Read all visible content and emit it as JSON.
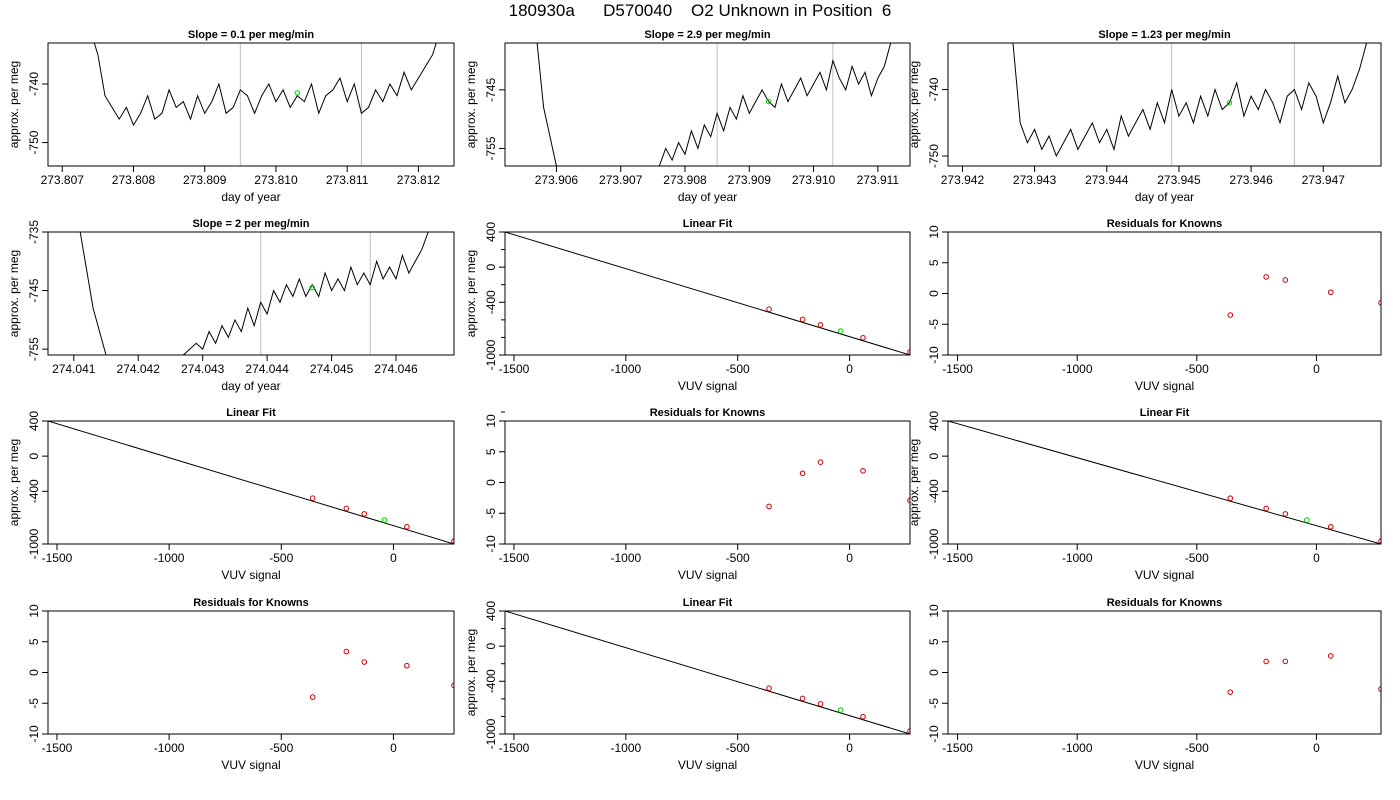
{
  "figure": {
    "title": "180930a      D570040    O2 Unknown in Position  6"
  },
  "colors": {
    "line": "#000000",
    "vline": "#bebebe",
    "unknown": "#00cc00",
    "known": "#cc0000",
    "box": "#000000"
  },
  "chart_data": [
    {
      "type": "line",
      "title": "Slope =  0.1  per meg/min",
      "xlabel": "day of year",
      "ylabel": "approx. per meg",
      "xlim": [
        273.8068,
        273.8125
      ],
      "ylim": [
        -754.0,
        -733.0
      ],
      "xticks": [
        "273.807",
        "273.808",
        "273.809",
        "273.810",
        "273.811",
        "273.812"
      ],
      "yticks": [
        "-740",
        "-750"
      ],
      "vlines": [
        273.8095,
        273.8112
      ],
      "marker": {
        "x": 273.8103,
        "y": -741.5
      },
      "x": [
        273.8074,
        273.8075,
        273.8076,
        273.8077,
        273.8078,
        273.8079,
        273.808,
        273.8081,
        273.8082,
        273.8083,
        273.8084,
        273.8085,
        273.8086,
        273.8087,
        273.8088,
        273.8089,
        273.809,
        273.8091,
        273.8092,
        273.8093,
        273.8094,
        273.8095,
        273.8096,
        273.8097,
        273.8098,
        273.8099,
        273.81,
        273.8101,
        273.8102,
        273.8103,
        273.8104,
        273.8105,
        273.8106,
        273.8107,
        273.8108,
        273.8109,
        273.811,
        273.8111,
        273.8112,
        273.8113,
        273.8114,
        273.8115,
        273.8116,
        273.8117,
        273.8118,
        273.8119,
        273.812,
        273.8121,
        273.8122,
        273.8123
      ],
      "y": [
        -731,
        -735,
        -742,
        -744,
        -746,
        -744,
        -747,
        -745,
        -742,
        -746,
        -745,
        -741,
        -744,
        -743,
        -746,
        -742,
        -745,
        -743,
        -740,
        -745,
        -744,
        -741,
        -742,
        -745,
        -742,
        -740,
        -743,
        -741,
        -744,
        -742,
        -743,
        -740,
        -745,
        -742,
        -741,
        -739,
        -743,
        -740,
        -745,
        -744,
        -741,
        -743,
        -740,
        -742,
        -738,
        -741,
        -739,
        -737,
        -735,
        -731
      ]
    },
    {
      "type": "line",
      "title": "Slope =  2.9  per meg/min",
      "xlabel": "day of year",
      "ylabel": "approx. per meg",
      "xlim": [
        273.9052,
        273.9115
      ],
      "ylim": [
        -758.0,
        -737.0
      ],
      "xticks": [
        "273.906",
        "273.907",
        "273.908",
        "273.909",
        "273.910",
        "273.911"
      ],
      "yticks": [
        "-745",
        "-755"
      ],
      "vlines": [
        273.9085,
        273.9103
      ],
      "marker": {
        "x": 273.9093,
        "y": -747.0
      },
      "x": [
        273.9057,
        273.9058,
        273.906,
        273.907,
        273.9076,
        273.9077,
        273.9078,
        273.9079,
        273.908,
        273.9081,
        273.9082,
        273.9083,
        273.9084,
        273.9085,
        273.9086,
        273.9087,
        273.9088,
        273.9089,
        273.909,
        273.9091,
        273.9092,
        273.9093,
        273.9094,
        273.9095,
        273.9096,
        273.9097,
        273.9098,
        273.9099,
        273.91,
        273.9101,
        273.9102,
        273.9103,
        273.9104,
        273.9105,
        273.9106,
        273.9107,
        273.9108,
        273.9109,
        273.911,
        273.9111,
        273.9112
      ],
      "y": [
        -737,
        -748,
        -758,
        -758,
        -758,
        -755,
        -757,
        -754,
        -756,
        -752,
        -755,
        -751,
        -753,
        -749,
        -752,
        -748,
        -750,
        -746,
        -749,
        -747,
        -745,
        -747,
        -748,
        -744,
        -747,
        -745,
        -743,
        -746,
        -744,
        -742,
        -745,
        -740,
        -743,
        -745,
        -741,
        -744,
        -742,
        -746,
        -743,
        -741,
        -737
      ]
    },
    {
      "type": "line",
      "title": "Slope =  1.23  per meg/min",
      "xlabel": "day of year",
      "ylabel": "approx. per meg",
      "xlim": [
        273.9418,
        273.9478
      ],
      "ylim": [
        -751.5,
        -733.0
      ],
      "xticks": [
        "273.942",
        "273.943",
        "273.944",
        "273.945",
        "273.946",
        "273.947"
      ],
      "yticks": [
        "-740",
        "-750"
      ],
      "vlines": [
        273.9449,
        273.9466
      ],
      "marker": {
        "x": 273.9457,
        "y": -742.0
      },
      "x": [
        273.9427,
        273.9428,
        273.9429,
        273.943,
        273.9431,
        273.9432,
        273.9433,
        273.9434,
        273.9435,
        273.9436,
        273.9437,
        273.9438,
        273.9439,
        273.944,
        273.9441,
        273.9442,
        273.9443,
        273.9444,
        273.9445,
        273.9446,
        273.9447,
        273.9448,
        273.9449,
        273.945,
        273.9451,
        273.9452,
        273.9453,
        273.9454,
        273.9455,
        273.9456,
        273.9457,
        273.9458,
        273.9459,
        273.946,
        273.9461,
        273.9462,
        273.9463,
        273.9464,
        273.9465,
        273.9466,
        273.9467,
        273.9468,
        273.9469,
        273.947,
        273.9471,
        273.9472,
        273.9473,
        273.9474,
        273.9475,
        273.9476
      ],
      "y": [
        -733,
        -745,
        -748,
        -746,
        -749,
        -747,
        -750,
        -748,
        -746,
        -749,
        -747,
        -745,
        -748,
        -746,
        -749,
        -744,
        -747,
        -745,
        -743,
        -746,
        -742,
        -745,
        -740,
        -744,
        -742,
        -745,
        -741,
        -744,
        -740,
        -743,
        -742,
        -739,
        -744,
        -741,
        -743,
        -740,
        -742,
        -745,
        -741,
        -740,
        -743,
        -739,
        -741,
        -745,
        -742,
        -738,
        -742,
        -740,
        -737,
        -733
      ]
    },
    {
      "type": "line",
      "title": "Slope =  2  per meg/min",
      "xlabel": "day of year",
      "ylabel": "approx. per meg",
      "xlim": [
        274.0406,
        274.0469
      ],
      "ylim": [
        -756.0,
        -735.0
      ],
      "xticks": [
        "274.041",
        "274.042",
        "274.043",
        "274.044",
        "274.045",
        "274.046"
      ],
      "yticks": [
        "-735",
        "-745",
        "-755"
      ],
      "vlines": [
        274.0439,
        274.0456
      ],
      "marker": {
        "x": 274.0447,
        "y": -744.5
      },
      "x": [
        274.0411,
        274.0413,
        274.0415,
        274.0425,
        274.0427,
        274.0429,
        274.043,
        274.0431,
        274.0432,
        274.0433,
        274.0434,
        274.0435,
        274.0436,
        274.0437,
        274.0438,
        274.0439,
        274.044,
        274.0441,
        274.0442,
        274.0443,
        274.0444,
        274.0445,
        274.0446,
        274.0447,
        274.0448,
        274.0449,
        274.045,
        274.0451,
        274.0452,
        274.0453,
        274.0454,
        274.0455,
        274.0456,
        274.0457,
        274.0458,
        274.0459,
        274.046,
        274.0461,
        274.0462,
        274.0463,
        274.0464,
        274.0465
      ],
      "y": [
        -735,
        -748,
        -756,
        -756,
        -756,
        -754,
        -755,
        -752,
        -754,
        -751,
        -753,
        -750,
        -752,
        -748,
        -751,
        -747,
        -749,
        -745,
        -747,
        -744,
        -746,
        -743,
        -746,
        -744,
        -746,
        -742,
        -745,
        -743,
        -745,
        -741,
        -744,
        -742,
        -744,
        -740,
        -743,
        -741,
        -743,
        -739,
        -742,
        -740,
        -738,
        -735
      ]
    },
    {
      "type": "scatter",
      "title": "Linear Fit",
      "xlabel": "VUV signal",
      "ylabel": "approx. per meg",
      "xlim": [
        -1540,
        270
      ],
      "ylim": [
        -1000,
        400
      ],
      "xticks": [
        "-1500",
        "-1000",
        "-500",
        "0"
      ],
      "yticks": [
        "400",
        "0",
        "-400",
        "-1000"
      ],
      "fit_line": [
        [
          -1540,
          400
        ],
        [
          270,
          -1000
        ]
      ],
      "known": {
        "x": [
          -360,
          -210,
          -130,
          60,
          270
        ],
        "y": [
          -479,
          -595,
          -657,
          -804,
          -966
        ]
      },
      "unknown": {
        "x": [
          -40
        ],
        "y": [
          -727
        ]
      }
    },
    {
      "type": "scatter",
      "title": "Residuals for Knowns",
      "xlabel": "VUV signal",
      "ylabel": "",
      "xlim": [
        -1540,
        270
      ],
      "ylim": [
        -10,
        10
      ],
      "xticks": [
        "-1500",
        "-1000",
        "-500",
        "0"
      ],
      "yticks": [
        "10",
        "5",
        "0",
        "-5",
        "-10"
      ],
      "known": {
        "x": [
          -360,
          -210,
          -130,
          60,
          270
        ],
        "y": [
          -3.5,
          2.7,
          2.2,
          0.2,
          -1.5
        ]
      }
    },
    {
      "type": "scatter",
      "title": "Linear Fit",
      "xlabel": "VUV signal",
      "ylabel": "approx. per meg",
      "xlim": [
        -1540,
        270
      ],
      "ylim": [
        -1000,
        400
      ],
      "xticks": [
        "-1500",
        "-1000",
        "-500",
        "0"
      ],
      "yticks": [
        "400",
        "0",
        "-400",
        "-1000"
      ],
      "fit_line": [
        [
          -1540,
          400
        ],
        [
          270,
          -1000
        ]
      ],
      "known": {
        "x": [
          -360,
          -210,
          -130,
          60,
          270
        ],
        "y": [
          -479,
          -595,
          -657,
          -804,
          -966
        ]
      },
      "unknown": {
        "x": [
          -40
        ],
        "y": [
          -727
        ]
      }
    },
    {
      "type": "scatter",
      "title": "Residuals for Knowns",
      "xlabel": "VUV signal",
      "ylabel": "",
      "xlim": [
        -1540,
        270
      ],
      "ylim": [
        -10,
        10
      ],
      "xticks": [
        "-1500",
        "-1000",
        "-500",
        "0"
      ],
      "yticks": [
        "10",
        "5",
        "0",
        "-5",
        "-10"
      ],
      "known": {
        "x": [
          -360,
          -210,
          -130,
          60,
          270
        ],
        "y": [
          -3.9,
          1.5,
          3.3,
          1.9,
          -2.9
        ]
      }
    },
    {
      "type": "scatter",
      "title": "Linear Fit",
      "xlabel": "VUV signal",
      "ylabel": "approx. per meg",
      "xlim": [
        -1540,
        270
      ],
      "ylim": [
        -1000,
        400
      ],
      "xticks": [
        "-1500",
        "-1000",
        "-500",
        "0"
      ],
      "yticks": [
        "400",
        "0",
        "-400",
        "-1000"
      ],
      "fit_line": [
        [
          -1540,
          400
        ],
        [
          270,
          -1000
        ]
      ],
      "known": {
        "x": [
          -360,
          -210,
          -130,
          60,
          270
        ],
        "y": [
          -479,
          -595,
          -657,
          -804,
          -966
        ]
      },
      "unknown": {
        "x": [
          -40
        ],
        "y": [
          -727
        ]
      }
    },
    {
      "type": "scatter",
      "title": "Residuals for Knowns",
      "xlabel": "VUV signal",
      "ylabel": "",
      "xlim": [
        -1540,
        270
      ],
      "ylim": [
        -10,
        10
      ],
      "xticks": [
        "-1500",
        "-1000",
        "-500",
        "0"
      ],
      "yticks": [
        "10",
        "5",
        "0",
        "-5",
        "-10"
      ],
      "known": {
        "x": [
          -360,
          -210,
          -130,
          60,
          270
        ],
        "y": [
          -4.0,
          3.4,
          1.7,
          1.1,
          -2.1
        ]
      }
    },
    {
      "type": "scatter",
      "title": "Linear Fit",
      "xlabel": "VUV signal",
      "ylabel": "approx. per meg",
      "xlim": [
        -1540,
        270
      ],
      "ylim": [
        -1000,
        400
      ],
      "xticks": [
        "-1500",
        "-1000",
        "-500",
        "0"
      ],
      "yticks": [
        "400",
        "0",
        "-400",
        "-1000"
      ],
      "fit_line": [
        [
          -1540,
          400
        ],
        [
          270,
          -1000
        ]
      ],
      "known": {
        "x": [
          -360,
          -210,
          -130,
          60,
          270
        ],
        "y": [
          -479,
          -595,
          -657,
          -804,
          -966
        ]
      },
      "unknown": {
        "x": [
          -40
        ],
        "y": [
          -727
        ]
      }
    },
    {
      "type": "scatter",
      "title": "Residuals for Knowns",
      "xlabel": "VUV signal",
      "ylabel": "",
      "xlim": [
        -1540,
        270
      ],
      "ylim": [
        -10,
        10
      ],
      "xticks": [
        "-1500",
        "-1000",
        "-500",
        "0"
      ],
      "yticks": [
        "10",
        "5",
        "0",
        "-5",
        "-10"
      ],
      "known": {
        "x": [
          -360,
          -210,
          -130,
          60,
          270
        ],
        "y": [
          -3.2,
          1.8,
          1.8,
          2.7,
          -2.7
        ]
      }
    }
  ]
}
